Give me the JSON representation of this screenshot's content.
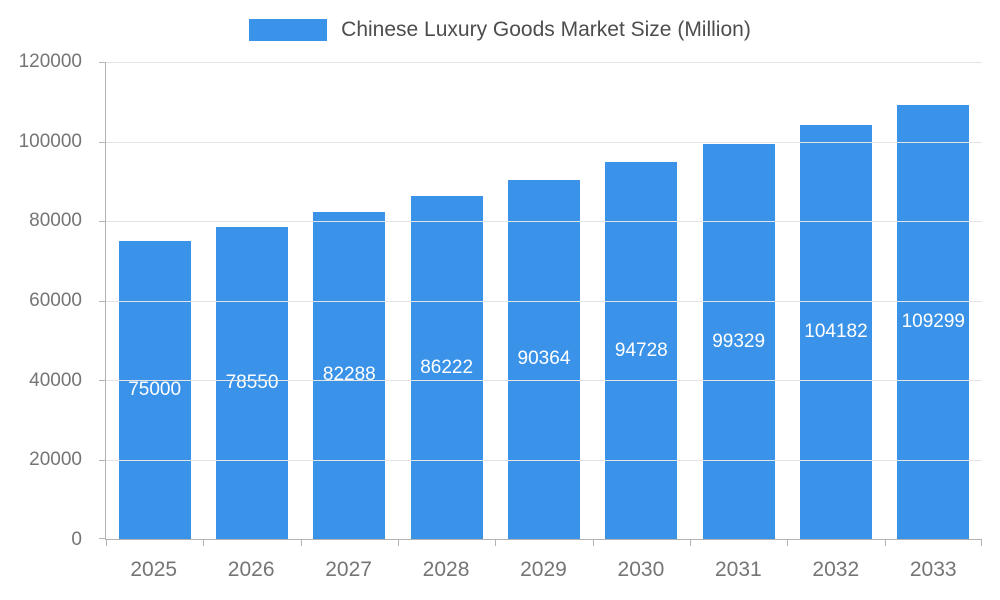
{
  "chart_data": {
    "type": "bar",
    "title": "Chinese Luxury Goods Market Size (Million)",
    "categories": [
      "2025",
      "2026",
      "2027",
      "2028",
      "2029",
      "2030",
      "2031",
      "2032",
      "2033"
    ],
    "values": [
      75000,
      78550,
      82288,
      86222,
      90364,
      94728,
      99329,
      104182,
      109299
    ],
    "ylim": [
      0,
      120000
    ],
    "y_ticks": [
      0,
      20000,
      40000,
      60000,
      80000,
      100000,
      120000
    ],
    "grid": true,
    "legend_position": "top",
    "colors": {
      "bar": "#3a93e8",
      "bar_label": "#ffffff",
      "axis": "#b3b3b3",
      "gridline": "#e3e3e3",
      "tick_text": "#757575",
      "title_text": "#4d4d4d"
    }
  }
}
